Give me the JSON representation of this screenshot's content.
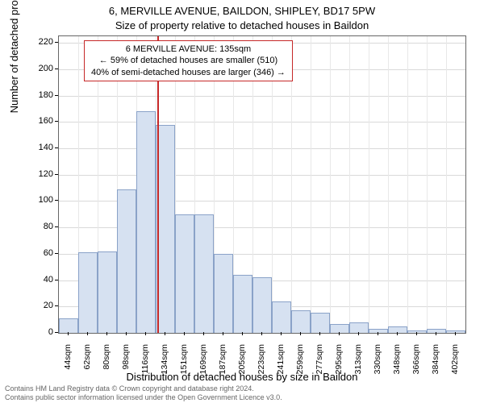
{
  "titles": {
    "line1": "6, MERVILLE AVENUE, BAILDON, SHIPLEY, BD17 5PW",
    "line2": "Size of property relative to detached houses in Baildon"
  },
  "axes": {
    "ylabel": "Number of detached properties",
    "xlabel": "Distribution of detached houses by size in Baildon"
  },
  "chart": {
    "type": "histogram",
    "ymax": 225,
    "ymin": 0,
    "yticks": [
      0,
      20,
      40,
      60,
      80,
      100,
      120,
      140,
      160,
      180,
      200,
      220
    ],
    "xtick_labels": [
      "44sqm",
      "62sqm",
      "80sqm",
      "98sqm",
      "116sqm",
      "134sqm",
      "151sqm",
      "169sqm",
      "187sqm",
      "205sqm",
      "223sqm",
      "241sqm",
      "259sqm",
      "277sqm",
      "295sqm",
      "313sqm",
      "330sqm",
      "348sqm",
      "366sqm",
      "384sqm",
      "402sqm"
    ],
    "bars": [
      11,
      61,
      62,
      109,
      168,
      158,
      90,
      90,
      60,
      44,
      42,
      24,
      17,
      15,
      7,
      8,
      3,
      5,
      2,
      3,
      2
    ],
    "bar_fill": "#d6e1f1",
    "bar_stroke": "#8aa2c8",
    "grid_color": "#e0e0e0",
    "background": "#ffffff",
    "border_color": "#666666",
    "ref_line_index_after": 5,
    "ref_line_color": "#c62828"
  },
  "annotation": {
    "line1": "6 MERVILLE AVENUE: 135sqm",
    "line2": "← 59% of detached houses are smaller (510)",
    "line3": "40% of semi-detached houses are larger (346) →",
    "box_border": "#c62828"
  },
  "footer": {
    "line1": "Contains HM Land Registry data © Crown copyright and database right 2024.",
    "line2": "Contains public sector information licensed under the Open Government Licence v3.0."
  }
}
